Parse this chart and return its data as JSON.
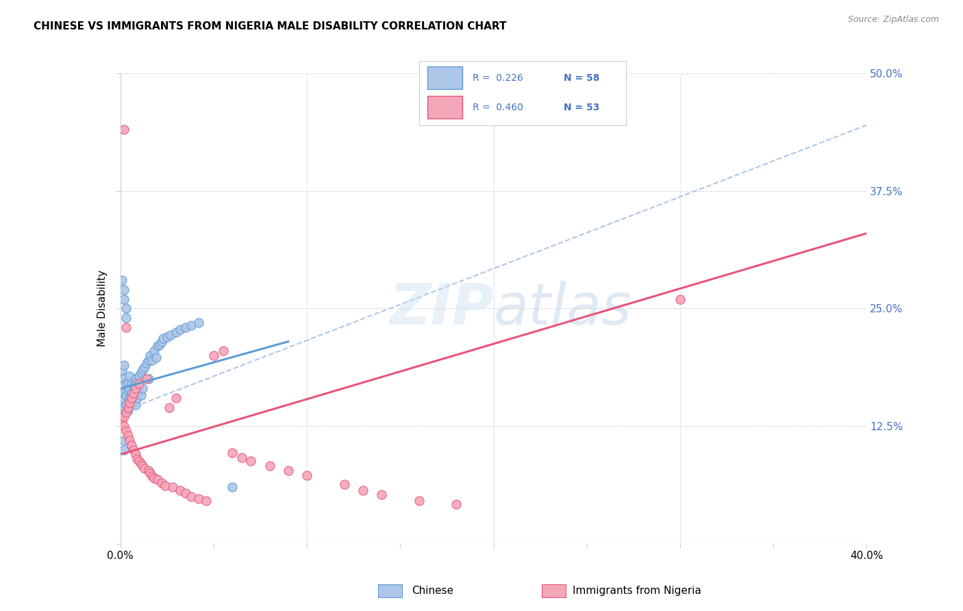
{
  "title": "CHINESE VS IMMIGRANTS FROM NIGERIA MALE DISABILITY CORRELATION CHART",
  "source": "Source: ZipAtlas.com",
  "ylabel": "Male Disability",
  "xlim": [
    0.0,
    0.4
  ],
  "ylim": [
    0.0,
    0.5
  ],
  "xticks": [
    0.0,
    0.05,
    0.1,
    0.15,
    0.2,
    0.25,
    0.3,
    0.35,
    0.4
  ],
  "xticklabels_show": [
    "0.0%",
    "40.0%"
  ],
  "yticks": [
    0.0,
    0.125,
    0.25,
    0.375,
    0.5
  ],
  "yticklabels": [
    "",
    "12.5%",
    "25.0%",
    "37.5%",
    "50.0%"
  ],
  "legend_r1": "R =  0.226",
  "legend_n1": "N = 58",
  "legend_r2": "R =  0.460",
  "legend_n2": "N = 53",
  "color_chinese_fill": "#aec6e8",
  "color_chinese_edge": "#5b9bd5",
  "color_nigeria_fill": "#f4a7b9",
  "color_nigeria_edge": "#e8547a",
  "color_line_chinese": "#5b9bd5",
  "color_line_nigeria": "#e8547a",
  "color_dashed": "#aec6e8",
  "color_tick_right": "#4472c4",
  "color_grid": "#dddddd",
  "bg_color": "#ffffff",
  "chinese_line_x": [
    0.0,
    0.09
  ],
  "chinese_line_y": [
    0.165,
    0.215
  ],
  "nigeria_line_x": [
    0.0,
    0.4
  ],
  "nigeria_line_y": [
    0.095,
    0.33
  ],
  "dashed_line_x": [
    0.0,
    0.4
  ],
  "dashed_line_y": [
    0.14,
    0.445
  ],
  "chinese_x": [
    0.001,
    0.001,
    0.002,
    0.002,
    0.002,
    0.002,
    0.003,
    0.003,
    0.003,
    0.004,
    0.004,
    0.004,
    0.005,
    0.005,
    0.005,
    0.006,
    0.006,
    0.006,
    0.007,
    0.007,
    0.008,
    0.008,
    0.008,
    0.009,
    0.009,
    0.01,
    0.01,
    0.011,
    0.011,
    0.012,
    0.012,
    0.013,
    0.014,
    0.015,
    0.015,
    0.016,
    0.017,
    0.018,
    0.019,
    0.02,
    0.021,
    0.022,
    0.023,
    0.025,
    0.027,
    0.03,
    0.032,
    0.035,
    0.038,
    0.042,
    0.001,
    0.002,
    0.002,
    0.003,
    0.003,
    0.06,
    0.002,
    0.002
  ],
  "chinese_y": [
    0.155,
    0.185,
    0.16,
    0.175,
    0.19,
    0.145,
    0.158,
    0.17,
    0.148,
    0.162,
    0.172,
    0.142,
    0.165,
    0.155,
    0.178,
    0.16,
    0.17,
    0.15,
    0.168,
    0.158,
    0.175,
    0.162,
    0.148,
    0.172,
    0.155,
    0.178,
    0.162,
    0.182,
    0.158,
    0.185,
    0.165,
    0.188,
    0.192,
    0.195,
    0.175,
    0.2,
    0.195,
    0.205,
    0.198,
    0.21,
    0.212,
    0.215,
    0.218,
    0.22,
    0.222,
    0.225,
    0.228,
    0.23,
    0.232,
    0.235,
    0.28,
    0.27,
    0.26,
    0.25,
    0.24,
    0.06,
    0.11,
    0.1
  ],
  "nigeria_x": [
    0.001,
    0.002,
    0.002,
    0.003,
    0.003,
    0.004,
    0.004,
    0.005,
    0.005,
    0.006,
    0.006,
    0.007,
    0.007,
    0.008,
    0.008,
    0.009,
    0.01,
    0.01,
    0.011,
    0.012,
    0.013,
    0.014,
    0.015,
    0.016,
    0.017,
    0.018,
    0.02,
    0.022,
    0.024,
    0.026,
    0.028,
    0.03,
    0.032,
    0.035,
    0.038,
    0.042,
    0.046,
    0.05,
    0.055,
    0.06,
    0.065,
    0.07,
    0.08,
    0.09,
    0.1,
    0.12,
    0.13,
    0.14,
    0.16,
    0.18,
    0.3,
    0.002,
    0.003
  ],
  "nigeria_y": [
    0.13,
    0.125,
    0.135,
    0.12,
    0.14,
    0.115,
    0.145,
    0.11,
    0.15,
    0.105,
    0.155,
    0.1,
    0.16,
    0.095,
    0.165,
    0.09,
    0.088,
    0.17,
    0.085,
    0.083,
    0.08,
    0.175,
    0.078,
    0.075,
    0.072,
    0.07,
    0.068,
    0.065,
    0.062,
    0.145,
    0.06,
    0.155,
    0.057,
    0.054,
    0.05,
    0.048,
    0.046,
    0.2,
    0.205,
    0.097,
    0.092,
    0.088,
    0.083,
    0.078,
    0.073,
    0.063,
    0.057,
    0.052,
    0.046,
    0.042,
    0.26,
    0.44,
    0.23
  ]
}
